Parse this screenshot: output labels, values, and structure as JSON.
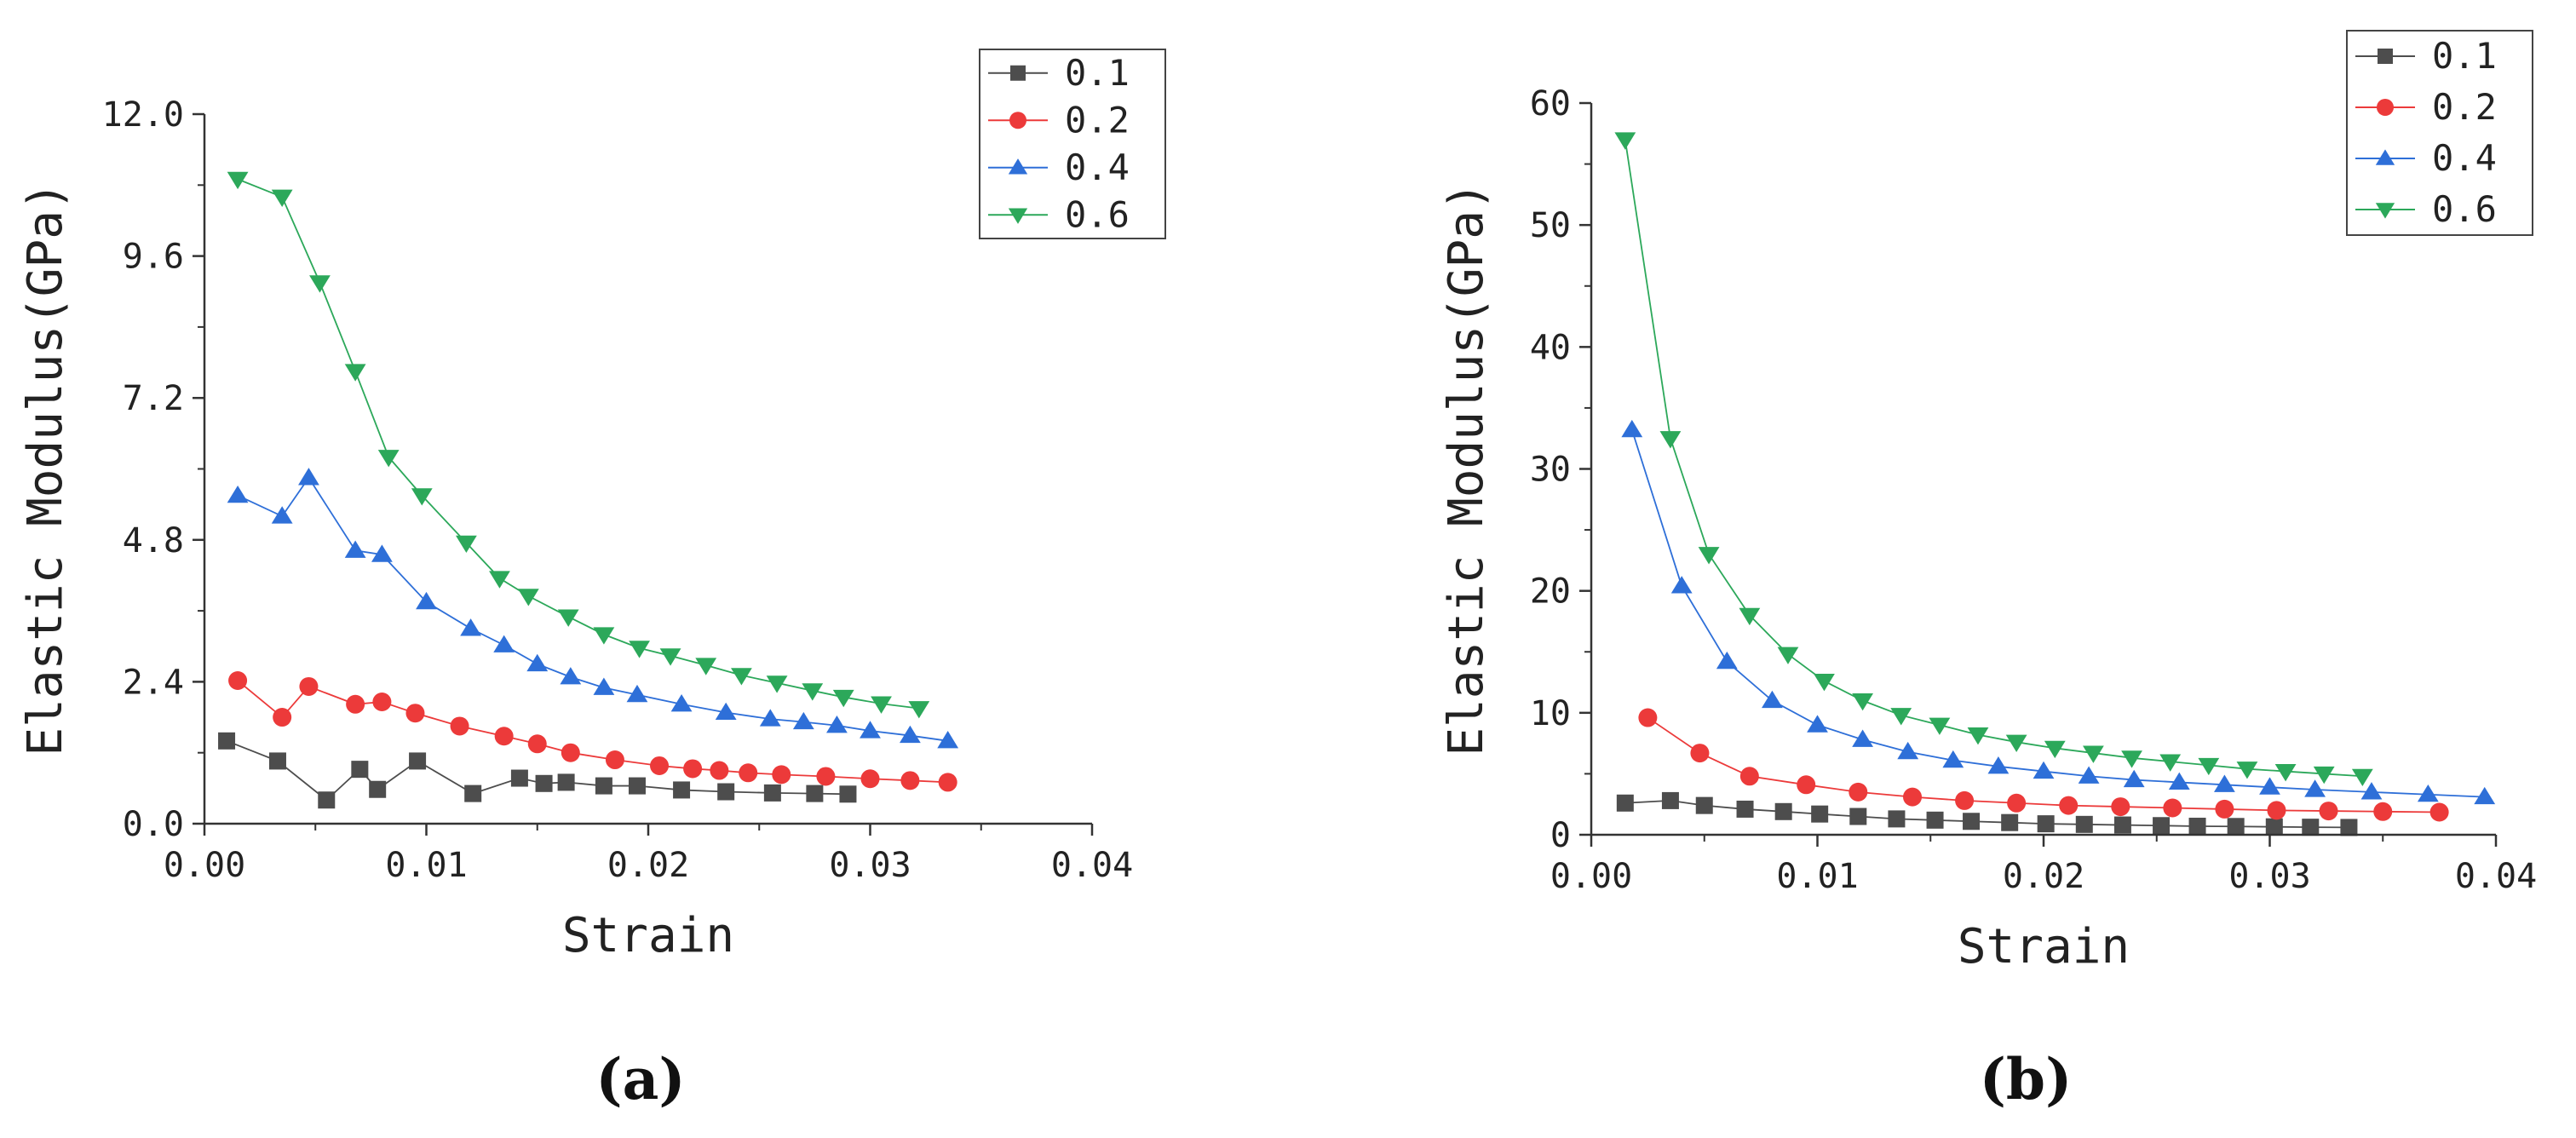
{
  "chart_data": [
    {
      "type": "line",
      "panel_label": "(a)",
      "xlabel": "Strain",
      "ylabel": "Elastic Modulus(GPa)",
      "xlim": [
        0,
        0.04
      ],
      "ylim": [
        0,
        12
      ],
      "xticks": [
        0,
        0.01,
        0.02,
        0.03,
        0.04
      ],
      "xtick_labels": [
        "0.00",
        "0.01",
        "0.02",
        "0.03",
        "0.04"
      ],
      "yticks": [
        0,
        2.4,
        4.8,
        7.2,
        9.6,
        12
      ],
      "ytick_labels": [
        "0.0",
        "2.4",
        "4.8",
        "7.2",
        "9.6",
        "12.0"
      ],
      "legend_position": "top-right",
      "series": [
        {
          "name": "0.1",
          "color": "#4d4d4d",
          "marker": "square",
          "x": [
            0.001,
            0.0033,
            0.0055,
            0.007,
            0.0078,
            0.0096,
            0.0121,
            0.0142,
            0.0153,
            0.0163,
            0.018,
            0.0195,
            0.0215,
            0.0235,
            0.0256,
            0.0275,
            0.029
          ],
          "y": [
            1.4,
            1.06,
            0.4,
            0.92,
            0.58,
            1.06,
            0.51,
            0.77,
            0.68,
            0.7,
            0.64,
            0.64,
            0.57,
            0.54,
            0.52,
            0.51,
            0.5
          ]
        },
        {
          "name": "0.2",
          "color": "#ec3a3a",
          "marker": "circle",
          "x": [
            0.0015,
            0.0035,
            0.0047,
            0.0068,
            0.008,
            0.0095,
            0.0115,
            0.0135,
            0.015,
            0.0165,
            0.0185,
            0.0205,
            0.022,
            0.0232,
            0.0245,
            0.026,
            0.028,
            0.03,
            0.0318,
            0.0335
          ],
          "y": [
            2.42,
            1.8,
            2.32,
            2.02,
            2.06,
            1.87,
            1.65,
            1.48,
            1.35,
            1.2,
            1.08,
            0.98,
            0.93,
            0.9,
            0.86,
            0.83,
            0.8,
            0.76,
            0.73,
            0.7
          ]
        },
        {
          "name": "0.4",
          "color": "#2e6fd8",
          "marker": "triangle-up",
          "x": [
            0.0015,
            0.0035,
            0.0047,
            0.0068,
            0.008,
            0.01,
            0.012,
            0.0135,
            0.015,
            0.0165,
            0.018,
            0.0195,
            0.0215,
            0.0235,
            0.0255,
            0.027,
            0.0285,
            0.03,
            0.0318,
            0.0335
          ],
          "y": [
            5.55,
            5.2,
            5.85,
            4.62,
            4.55,
            3.75,
            3.3,
            3.02,
            2.7,
            2.48,
            2.3,
            2.18,
            2.02,
            1.88,
            1.77,
            1.72,
            1.66,
            1.57,
            1.49,
            1.4
          ]
        },
        {
          "name": "0.6",
          "color": "#2ca85a",
          "marker": "triangle-down",
          "x": [
            0.0015,
            0.0035,
            0.0052,
            0.0068,
            0.0083,
            0.0098,
            0.0118,
            0.0133,
            0.0146,
            0.0164,
            0.018,
            0.0196,
            0.021,
            0.0226,
            0.0242,
            0.0258,
            0.0274,
            0.0288,
            0.0305,
            0.0322
          ],
          "y": [
            10.9,
            10.6,
            9.15,
            7.65,
            6.2,
            5.55,
            4.75,
            4.15,
            3.85,
            3.5,
            3.2,
            2.97,
            2.84,
            2.68,
            2.51,
            2.38,
            2.25,
            2.14,
            2.03,
            1.95
          ]
        }
      ]
    },
    {
      "type": "line",
      "panel_label": "(b)",
      "xlabel": "Strain",
      "ylabel": "Elastic Modulus(GPa)",
      "xlim": [
        0,
        0.04
      ],
      "ylim": [
        0,
        60
      ],
      "xticks": [
        0,
        0.01,
        0.02,
        0.03,
        0.04
      ],
      "xtick_labels": [
        "0.00",
        "0.01",
        "0.02",
        "0.03",
        "0.04"
      ],
      "yticks": [
        0,
        10,
        20,
        30,
        40,
        50,
        60
      ],
      "ytick_labels": [
        "0",
        "10",
        "20",
        "30",
        "40",
        "50",
        "60"
      ],
      "legend_position": "top-right",
      "series": [
        {
          "name": "0.1",
          "color": "#4d4d4d",
          "marker": "square",
          "x": [
            0.0015,
            0.0035,
            0.005,
            0.0068,
            0.0085,
            0.0101,
            0.0118,
            0.0135,
            0.0152,
            0.0168,
            0.0185,
            0.0201,
            0.0218,
            0.0235,
            0.0252,
            0.0268,
            0.0285,
            0.0302,
            0.0318,
            0.0335
          ],
          "y": [
            2.6,
            2.8,
            2.4,
            2.1,
            1.9,
            1.7,
            1.5,
            1.3,
            1.2,
            1.1,
            1.0,
            0.9,
            0.85,
            0.8,
            0.75,
            0.7,
            0.68,
            0.65,
            0.62,
            0.6
          ]
        },
        {
          "name": "0.2",
          "color": "#ec3a3a",
          "marker": "circle",
          "x": [
            0.0025,
            0.0048,
            0.007,
            0.0095,
            0.0118,
            0.0142,
            0.0165,
            0.0188,
            0.0211,
            0.0234,
            0.0257,
            0.028,
            0.0303,
            0.0326,
            0.035,
            0.0375
          ],
          "y": [
            9.6,
            6.7,
            4.8,
            4.1,
            3.5,
            3.1,
            2.8,
            2.6,
            2.4,
            2.3,
            2.2,
            2.1,
            2.0,
            1.95,
            1.9,
            1.85
          ]
        },
        {
          "name": "0.4",
          "color": "#2e6fd8",
          "marker": "triangle-up",
          "x": [
            0.0018,
            0.004,
            0.006,
            0.008,
            0.01,
            0.012,
            0.014,
            0.016,
            0.018,
            0.02,
            0.022,
            0.024,
            0.026,
            0.028,
            0.03,
            0.032,
            0.0345,
            0.037,
            0.0395
          ],
          "y": [
            33.2,
            20.4,
            14.2,
            11.0,
            9.0,
            7.8,
            6.8,
            6.1,
            5.6,
            5.2,
            4.8,
            4.5,
            4.3,
            4.1,
            3.9,
            3.7,
            3.5,
            3.3,
            3.1
          ]
        },
        {
          "name": "0.6",
          "color": "#2ca85a",
          "marker": "triangle-down",
          "x": [
            0.0015,
            0.0035,
            0.0052,
            0.007,
            0.0087,
            0.0103,
            0.012,
            0.0137,
            0.0154,
            0.0171,
            0.0188,
            0.0205,
            0.0222,
            0.0239,
            0.0256,
            0.0273,
            0.029,
            0.0307,
            0.0324,
            0.0341
          ],
          "y": [
            57.0,
            32.5,
            23.0,
            18.0,
            14.8,
            12.6,
            11.0,
            9.8,
            9.0,
            8.2,
            7.6,
            7.1,
            6.7,
            6.3,
            6.0,
            5.7,
            5.4,
            5.2,
            5.0,
            4.8
          ]
        }
      ]
    }
  ]
}
